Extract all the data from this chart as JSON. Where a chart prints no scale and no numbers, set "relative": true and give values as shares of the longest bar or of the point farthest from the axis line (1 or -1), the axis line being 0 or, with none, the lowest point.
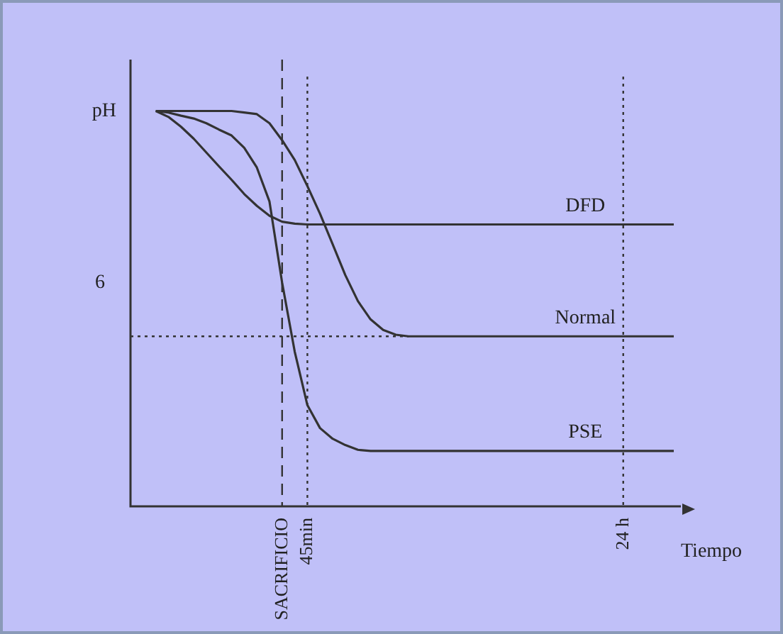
{
  "chart_data": {
    "type": "line",
    "relative": true,
    "xlabel": "Tiempo",
    "ylabel": "pH",
    "grid": false,
    "legend": false,
    "marker": "none",
    "line_style": "solid",
    "categories": [
      null,
      null,
      null,
      null,
      null,
      null,
      null,
      null,
      null,
      null,
      null,
      null,
      "SACRIFICIO",
      null,
      "45min",
      null,
      null,
      null,
      null,
      null,
      null,
      null,
      null,
      null,
      null,
      null,
      null,
      null,
      null,
      null,
      null,
      null,
      null,
      null,
      null,
      null,
      null,
      null,
      null,
      "24 h",
      null,
      null,
      null,
      null
    ],
    "series": [
      {
        "name": "DFD",
        "color": "#333333",
        "values": [
          null,
          null,
          1.0,
          0.985,
          0.96,
          0.93,
          0.895,
          0.86,
          0.826,
          0.79,
          0.76,
          0.735,
          0.72,
          0.715,
          0.713,
          0.713,
          0.713,
          0.713,
          0.713,
          0.713,
          0.713,
          0.713,
          0.713,
          0.713,
          0.713,
          0.713,
          0.713,
          0.713,
          0.713,
          0.713,
          0.713,
          0.713,
          0.713,
          0.713,
          0.713,
          0.713,
          0.713,
          0.713,
          0.713,
          0.713,
          0.713,
          0.713,
          0.713,
          0.713
        ]
      },
      {
        "name": "Normal",
        "color": "#333333",
        "values": [
          null,
          null,
          1.0,
          1.0,
          1.0,
          1.0,
          1.0,
          1.0,
          1.0,
          0.996,
          0.992,
          0.969,
          0.926,
          0.876,
          0.81,
          0.74,
          0.663,
          0.585,
          0.519,
          0.473,
          0.446,
          0.434,
          0.43,
          0.43,
          0.43,
          0.43,
          0.43,
          0.43,
          0.43,
          0.43,
          0.43,
          0.43,
          0.43,
          0.43,
          0.43,
          0.43,
          0.43,
          0.43,
          0.43,
          0.43,
          0.43,
          0.43,
          0.43,
          0.43
        ]
      },
      {
        "name": "PSE",
        "color": "#333333",
        "values": [
          null,
          null,
          1.0,
          0.996,
          0.988,
          0.981,
          0.969,
          0.953,
          0.938,
          0.907,
          0.857,
          0.771,
          0.566,
          0.391,
          0.256,
          0.198,
          0.171,
          0.155,
          0.143,
          0.14,
          0.14,
          0.14,
          0.14,
          0.14,
          0.14,
          0.14,
          0.14,
          0.14,
          0.14,
          0.14,
          0.14,
          0.14,
          0.14,
          0.14,
          0.14,
          0.14,
          0.14,
          0.14,
          0.14,
          0.14,
          0.14,
          0.14,
          0.14,
          0.14
        ]
      }
    ],
    "ref_lines": [
      {
        "axis": "x",
        "value": "SACRIFICIO",
        "color": "#333333",
        "line_style": "dashed"
      },
      {
        "axis": "x",
        "value": "45min",
        "color": "#333333",
        "line_style": "dotted"
      },
      {
        "axis": "x",
        "value": "24 h",
        "color": "#333333",
        "line_style": "dotted"
      },
      {
        "axis": "y",
        "value": 0.43,
        "color": "#333333",
        "line_style": "dotted"
      }
    ],
    "annotations": [
      "6"
    ]
  }
}
